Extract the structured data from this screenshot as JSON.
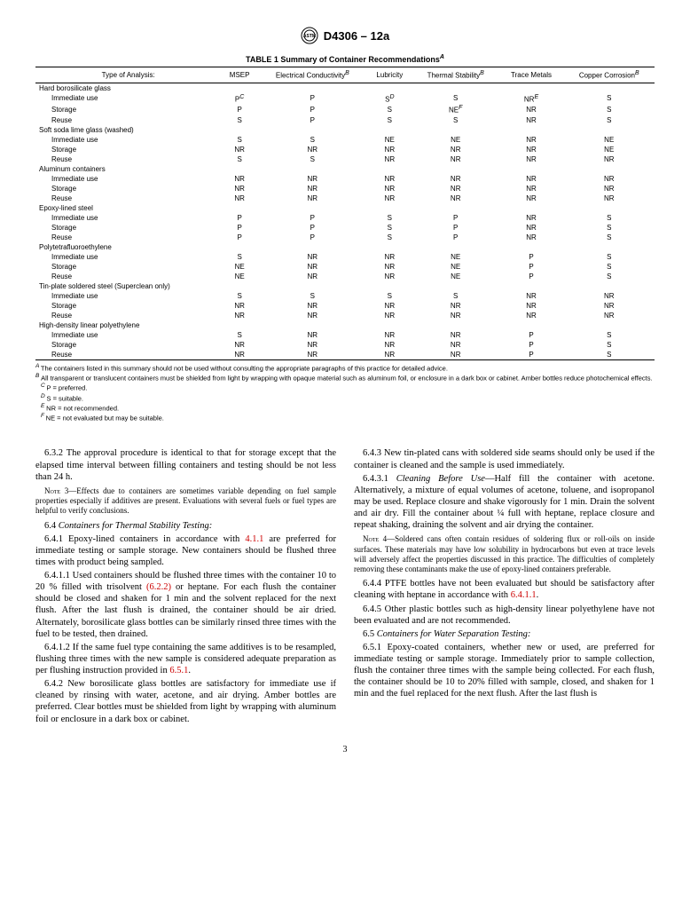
{
  "header": {
    "doc": "D4306 – 12a"
  },
  "table": {
    "title_prefix": "TABLE 1",
    "title": "Summary of Container Recommendations",
    "title_sup": "A",
    "columns": [
      {
        "label": "Type of Analysis:",
        "sup": ""
      },
      {
        "label": "MSEP",
        "sup": ""
      },
      {
        "label": "Electrical Conductivity",
        "sup": "B"
      },
      {
        "label": "Lubricity",
        "sup": ""
      },
      {
        "label": "Thermal Stability",
        "sup": "B"
      },
      {
        "label": "Trace Metals",
        "sup": ""
      },
      {
        "label": "Copper Corrosion",
        "sup": "B"
      }
    ],
    "groups": [
      {
        "name": "Hard borosilicate glass",
        "rows": [
          {
            "label": "Immediate use",
            "vals": [
              {
                "v": "P",
                "s": "C"
              },
              {
                "v": "P"
              },
              {
                "v": "S",
                "s": "D"
              },
              {
                "v": "S"
              },
              {
                "v": "NR",
                "s": "E"
              },
              {
                "v": "S"
              }
            ]
          },
          {
            "label": "Storage",
            "vals": [
              {
                "v": "P"
              },
              {
                "v": "P"
              },
              {
                "v": "S"
              },
              {
                "v": "NE",
                "s": "F"
              },
              {
                "v": "NR"
              },
              {
                "v": "S"
              }
            ]
          },
          {
            "label": "Reuse",
            "vals": [
              {
                "v": "S"
              },
              {
                "v": "P"
              },
              {
                "v": "S"
              },
              {
                "v": "S"
              },
              {
                "v": "NR"
              },
              {
                "v": "S"
              }
            ]
          }
        ]
      },
      {
        "name": "Soft soda lime glass (washed)",
        "rows": [
          {
            "label": "Immediate use",
            "vals": [
              {
                "v": "S"
              },
              {
                "v": "S"
              },
              {
                "v": "NE"
              },
              {
                "v": "NE"
              },
              {
                "v": "NR"
              },
              {
                "v": "NE"
              }
            ]
          },
          {
            "label": "Storage",
            "vals": [
              {
                "v": "NR"
              },
              {
                "v": "NR"
              },
              {
                "v": "NR"
              },
              {
                "v": "NR"
              },
              {
                "v": "NR"
              },
              {
                "v": "NE"
              }
            ]
          },
          {
            "label": "Reuse",
            "vals": [
              {
                "v": "S"
              },
              {
                "v": "S"
              },
              {
                "v": "NR"
              },
              {
                "v": "NR"
              },
              {
                "v": "NR"
              },
              {
                "v": "NR"
              }
            ]
          }
        ]
      },
      {
        "name": "Aluminum containers",
        "rows": [
          {
            "label": "Immediate use",
            "vals": [
              {
                "v": "NR"
              },
              {
                "v": "NR"
              },
              {
                "v": "NR"
              },
              {
                "v": "NR"
              },
              {
                "v": "NR"
              },
              {
                "v": "NR"
              }
            ]
          },
          {
            "label": "Storage",
            "vals": [
              {
                "v": "NR"
              },
              {
                "v": "NR"
              },
              {
                "v": "NR"
              },
              {
                "v": "NR"
              },
              {
                "v": "NR"
              },
              {
                "v": "NR"
              }
            ]
          },
          {
            "label": "Reuse",
            "vals": [
              {
                "v": "NR"
              },
              {
                "v": "NR"
              },
              {
                "v": "NR"
              },
              {
                "v": "NR"
              },
              {
                "v": "NR"
              },
              {
                "v": "NR"
              }
            ]
          }
        ]
      },
      {
        "name": "Epoxy-lined steel",
        "rows": [
          {
            "label": "Immediate use",
            "vals": [
              {
                "v": "P"
              },
              {
                "v": "P"
              },
              {
                "v": "S"
              },
              {
                "v": "P"
              },
              {
                "v": "NR"
              },
              {
                "v": "S"
              }
            ]
          },
          {
            "label": "Storage",
            "vals": [
              {
                "v": "P"
              },
              {
                "v": "P"
              },
              {
                "v": "S"
              },
              {
                "v": "P"
              },
              {
                "v": "NR"
              },
              {
                "v": "S"
              }
            ]
          },
          {
            "label": "Reuse",
            "vals": [
              {
                "v": "P"
              },
              {
                "v": "P"
              },
              {
                "v": "S"
              },
              {
                "v": "P"
              },
              {
                "v": "NR"
              },
              {
                "v": "S"
              }
            ]
          }
        ]
      },
      {
        "name": "Polytetrafluoroethylene",
        "rows": [
          {
            "label": "Immediate use",
            "vals": [
              {
                "v": "S"
              },
              {
                "v": "NR"
              },
              {
                "v": "NR"
              },
              {
                "v": "NE"
              },
              {
                "v": "P"
              },
              {
                "v": "S"
              }
            ]
          },
          {
            "label": "Storage",
            "vals": [
              {
                "v": "NE"
              },
              {
                "v": "NR"
              },
              {
                "v": "NR"
              },
              {
                "v": "NE"
              },
              {
                "v": "P"
              },
              {
                "v": "S"
              }
            ]
          },
          {
            "label": "Reuse",
            "vals": [
              {
                "v": "NE"
              },
              {
                "v": "NR"
              },
              {
                "v": "NR"
              },
              {
                "v": "NE"
              },
              {
                "v": "P"
              },
              {
                "v": "S"
              }
            ]
          }
        ]
      },
      {
        "name": "Tin-plate soldered steel (Superclean only)",
        "rows": [
          {
            "label": "Immediate use",
            "vals": [
              {
                "v": "S"
              },
              {
                "v": "S"
              },
              {
                "v": "S"
              },
              {
                "v": "S"
              },
              {
                "v": "NR"
              },
              {
                "v": "NR"
              }
            ]
          },
          {
            "label": "Storage",
            "vals": [
              {
                "v": "NR"
              },
              {
                "v": "NR"
              },
              {
                "v": "NR"
              },
              {
                "v": "NR"
              },
              {
                "v": "NR"
              },
              {
                "v": "NR"
              }
            ]
          },
          {
            "label": "Reuse",
            "vals": [
              {
                "v": "NR"
              },
              {
                "v": "NR"
              },
              {
                "v": "NR"
              },
              {
                "v": "NR"
              },
              {
                "v": "NR"
              },
              {
                "v": "NR"
              }
            ]
          }
        ]
      },
      {
        "name": "High-density linear polyethylene",
        "rows": [
          {
            "label": "Immediate use",
            "vals": [
              {
                "v": "S"
              },
              {
                "v": "NR"
              },
              {
                "v": "NR"
              },
              {
                "v": "NR"
              },
              {
                "v": "P"
              },
              {
                "v": "S"
              }
            ]
          },
          {
            "label": "Storage",
            "vals": [
              {
                "v": "NR"
              },
              {
                "v": "NR"
              },
              {
                "v": "NR"
              },
              {
                "v": "NR"
              },
              {
                "v": "P"
              },
              {
                "v": "S"
              }
            ]
          },
          {
            "label": "Reuse",
            "vals": [
              {
                "v": "NR"
              },
              {
                "v": "NR"
              },
              {
                "v": "NR"
              },
              {
                "v": "NR"
              },
              {
                "v": "P"
              },
              {
                "v": "S"
              }
            ]
          }
        ]
      }
    ],
    "footnotes": [
      {
        "sup": "A",
        "text": "The containers listed in this summary should not be used without consulting the appropriate paragraphs of this practice for detailed advice."
      },
      {
        "sup": "B",
        "text": "All transparent or translucent containers must be shielded from light by wrapping with opaque material such as aluminum foil, or enclosure in a dark box or cabinet. Amber bottles reduce photochemical effects."
      },
      {
        "sup": "C",
        "text": "P = preferred."
      },
      {
        "sup": "D",
        "text": "S = suitable."
      },
      {
        "sup": "E",
        "text": "NR = not recommended."
      },
      {
        "sup": "F",
        "text": "NE = not evaluated but may be suitable."
      }
    ]
  },
  "body": {
    "left": {
      "p1": "6.3.2 The approval procedure is identical to that for storage except that the elapsed time interval between filling containers and testing should be not less than 24 h.",
      "note3_label": "Note 3—",
      "note3": "Effects due to containers are sometimes variable depending on fuel sample properties especially if additives are present. Evaluations with several fuels or fuel types are helpful to verify conclusions.",
      "s64": "6.4 ",
      "s64_title": "Containers for Thermal Stability Testing:",
      "p641a": "6.4.1 Epoxy-lined containers in accordance with ",
      "x411": "4.1.1",
      "p641b": " are preferred for immediate testing or sample storage. New containers should be flushed three times with product being sampled.",
      "p6411a": "6.4.1.1 Used containers should be flushed three times with the container 10 to 20 % filled with trisolvent ",
      "x622": "(6.2.2)",
      "p6411b": " or heptane. For each flush the container should be closed and shaken for 1 min and the solvent replaced for the next flush. After the last flush is drained, the container should be air dried. Alternately, borosilicate glass bottles can be similarly rinsed three times with the fuel to be tested, then drained.",
      "p6412a": "6.4.1.2 If the same fuel type containing the same additives is to be resampled, flushing three times with the new sample is considered adequate preparation as per flushing instruction provided in ",
      "x651": "6.5.1",
      "p6412b": ".",
      "p642": "6.4.2 New borosilicate glass bottles are satisfactory for immediate use if cleaned by rinsing with water, acetone, and air drying. Amber bottles are preferred. Clear bottles must be shielded from light by wrapping with aluminum foil or enclosure in a dark box or cabinet."
    },
    "right": {
      "p643": "6.4.3 New tin-plated cans with soldered side seams should only be used if the container is cleaned and the sample is used immediately.",
      "p6431_num": "6.4.3.1 ",
      "p6431_title": "Cleaning Before Use",
      "p6431": "—Half fill the container with acetone. Alternatively, a mixture of equal volumes of acetone, toluene, and isopropanol may be used. Replace closure and shake vigorously for 1 min. Drain the solvent and air dry. Fill the container about ¼ full with heptane, replace closure and repeat shaking, draining the solvent and air drying the container.",
      "note4_label": "Note 4—",
      "note4": "Soldered cans often contain residues of soldering flux or roll-oils on inside surfaces. These materials may have low solubility in hydrocarbons but even at trace levels will adversely affect the properties discussed in this practice. The difficulties of completely removing these contaminants make the use of epoxy-lined containers preferable.",
      "p644a": "6.4.4 PTFE bottles have not been evaluated but should be satisfactory after cleaning with heptane in accordance with ",
      "x6411": "6.4.1.1",
      "p644b": ".",
      "p645": "6.4.5 Other plastic bottles such as high-density linear polyethylene have not been evaluated and are not recommended.",
      "s65": "6.5 ",
      "s65_title": "Containers for Water Separation Testing:",
      "p651": "6.5.1 Epoxy-coated containers, whether new or used, are preferred for immediate testing or sample storage. Immediately prior to sample collection, flush the container three times with the sample being collected. For each flush, the container should be 10 to 20% filled with sample, closed, and shaken for 1 min and the fuel replaced for the next flush. After the last flush is"
    }
  },
  "page": "3"
}
